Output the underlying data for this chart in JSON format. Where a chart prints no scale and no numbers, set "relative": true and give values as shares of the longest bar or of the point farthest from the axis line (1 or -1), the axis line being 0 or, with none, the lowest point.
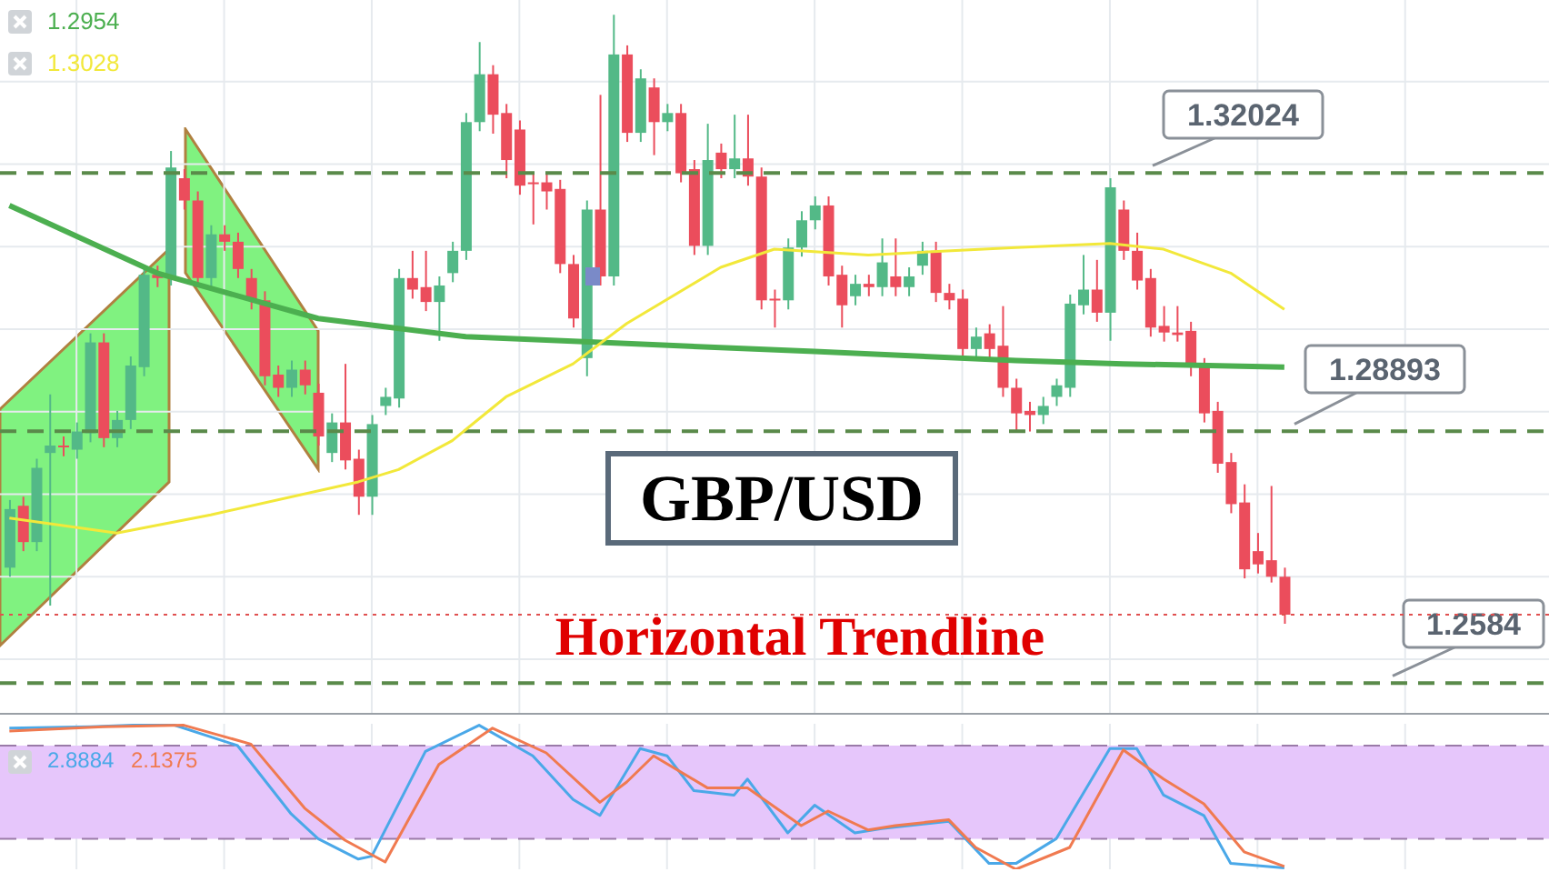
{
  "chart_data": [
    {
      "type": "candlestick",
      "title": "GBP/USD",
      "annotations": [
        "Horizontal Trendline",
        "1.2954",
        "1.3028"
      ],
      "categories": [
        null,
        null,
        null,
        null,
        null,
        null,
        null,
        null,
        null,
        null,
        null,
        null,
        null,
        null,
        null,
        null,
        null,
        null,
        null,
        null,
        null,
        null,
        null,
        null,
        null,
        null,
        null,
        null,
        null,
        null,
        null,
        null,
        null,
        null,
        null,
        null,
        null,
        null,
        null,
        null,
        null,
        null,
        null,
        null,
        null,
        null,
        null,
        null,
        null,
        null,
        null,
        null,
        null,
        null,
        null,
        null,
        null,
        null,
        null,
        null,
        null,
        null,
        null,
        null,
        null,
        null,
        null,
        null,
        null,
        null,
        null,
        null,
        null,
        null,
        null,
        null,
        null,
        null,
        null,
        null,
        null,
        null,
        null,
        null,
        null,
        null,
        null,
        null,
        null,
        null,
        null,
        null,
        null,
        null,
        null,
        null
      ],
      "ohlc": [
        [
          1.2724,
          1.2806,
          1.2713,
          1.2795
        ],
        [
          1.2799,
          1.281,
          1.2744,
          1.2755
        ],
        [
          1.2755,
          1.2856,
          1.2744,
          1.2845
        ],
        [
          1.2863,
          1.2934,
          1.2678,
          1.2872
        ],
        [
          1.2872,
          1.2883,
          1.2859,
          1.287
        ],
        [
          1.2867,
          1.29,
          1.2856,
          1.2889
        ],
        [
          1.2887,
          1.3008,
          1.2876,
          1.2997
        ],
        [
          1.2997,
          1.3008,
          1.287,
          1.2881
        ],
        [
          1.2881,
          1.2914,
          1.287,
          1.2903
        ],
        [
          1.2903,
          1.298,
          1.2892,
          1.2969
        ],
        [
          1.2967,
          1.309,
          1.2956,
          1.3079
        ],
        [
          1.3079,
          1.309,
          1.3064,
          1.3075
        ],
        [
          1.3077,
          1.3229,
          1.3066,
          1.3209
        ],
        [
          1.3196,
          1.3207,
          1.3158,
          1.3169
        ],
        [
          1.3169,
          1.318,
          1.3064,
          1.3075
        ],
        [
          1.3075,
          1.3139,
          1.3064,
          1.3128
        ],
        [
          1.3128,
          1.3139,
          1.3108,
          1.3119
        ],
        [
          1.3119,
          1.313,
          1.3075,
          1.3086
        ],
        [
          1.3075,
          1.3086,
          1.3037,
          1.3048
        ],
        [
          1.3048,
          1.3059,
          1.2945,
          1.2956
        ],
        [
          1.2958,
          1.2969,
          1.2931,
          1.2942
        ],
        [
          1.2942,
          1.2975,
          1.2931,
          1.2964
        ],
        [
          1.2964,
          1.2975,
          1.2934,
          1.2945
        ],
        [
          1.2936,
          1.2947,
          1.2872,
          1.2883
        ],
        [
          1.2863,
          1.2911,
          1.2852,
          1.29
        ],
        [
          1.29,
          1.2971,
          1.2843,
          1.2854
        ],
        [
          1.2856,
          1.2867,
          1.2788,
          1.281
        ],
        [
          1.281,
          1.2909,
          1.2788,
          1.2898
        ],
        [
          1.292,
          1.2942,
          1.2909,
          1.2931
        ],
        [
          1.2929,
          1.3086,
          1.2918,
          1.3075
        ],
        [
          1.3075,
          1.3108,
          1.305,
          1.3061
        ],
        [
          1.3064,
          1.3108,
          1.3035,
          1.3046
        ],
        [
          1.3046,
          1.3077,
          1.2999,
          1.3066
        ],
        [
          1.3081,
          1.3119,
          1.307,
          1.3108
        ],
        [
          1.3108,
          1.3275,
          1.3097,
          1.3264
        ],
        [
          1.3264,
          1.3361,
          1.3253,
          1.3322
        ],
        [
          1.3322,
          1.3333,
          1.325,
          1.3273
        ],
        [
          1.3275,
          1.3286,
          1.3196,
          1.3218
        ],
        [
          1.3255,
          1.3266,
          1.3176,
          1.3187
        ],
        [
          1.3191,
          1.3202,
          1.314,
          1.3189
        ],
        [
          1.3191,
          1.3202,
          1.3158,
          1.318
        ],
        [
          1.3183,
          1.3194,
          1.3081,
          1.3092
        ],
        [
          1.3092,
          1.3103,
          1.3015,
          1.3026
        ],
        [
          1.2978,
          1.3169,
          1.2956,
          1.3158
        ],
        [
          1.3158,
          1.3297,
          1.3066,
          1.3077
        ],
        [
          1.3077,
          1.3394,
          1.3066,
          1.3346
        ],
        [
          1.3346,
          1.3357,
          1.324,
          1.3251
        ],
        [
          1.3251,
          1.3328,
          1.324,
          1.3317
        ],
        [
          1.3306,
          1.3317,
          1.3224,
          1.3264
        ],
        [
          1.3264,
          1.3286,
          1.3253,
          1.3275
        ],
        [
          1.3275,
          1.3286,
          1.3191,
          1.3202
        ],
        [
          1.3207,
          1.3218,
          1.3103,
          1.3114
        ],
        [
          1.3114,
          1.3262,
          1.3103,
          1.3218
        ],
        [
          1.3227,
          1.3238,
          1.3196,
          1.3207
        ],
        [
          1.3207,
          1.3273,
          1.3196,
          1.322
        ],
        [
          1.322,
          1.3273,
          1.3187,
          1.3198
        ],
        [
          1.3198,
          1.3209,
          1.3037,
          1.3048
        ],
        [
          1.305,
          1.3061,
          1.3015,
          1.3048
        ],
        [
          1.3048,
          1.3123,
          1.3037,
          1.3112
        ],
        [
          1.3112,
          1.3156,
          1.3101,
          1.3145
        ],
        [
          1.3145,
          1.3174,
          1.3134,
          1.3163
        ],
        [
          1.3163,
          1.3174,
          1.3066,
          1.3077
        ],
        [
          1.3079,
          1.309,
          1.3015,
          1.3042
        ],
        [
          1.3053,
          1.3079,
          1.3042,
          1.3068
        ],
        [
          1.3068,
          1.3079,
          1.3053,
          1.3064
        ],
        [
          1.3064,
          1.3123,
          1.3053,
          1.3094
        ],
        [
          1.3077,
          1.3123,
          1.3053,
          1.3064
        ],
        [
          1.3064,
          1.3088,
          1.3053,
          1.3077
        ],
        [
          1.309,
          1.3119,
          1.3079,
          1.3108
        ],
        [
          1.3108,
          1.3119,
          1.3046,
          1.3057
        ],
        [
          1.3057,
          1.3068,
          1.3037,
          1.3048
        ],
        [
          1.305,
          1.3061,
          1.2978,
          1.2989
        ],
        [
          1.2989,
          1.3015,
          1.2978,
          1.3004
        ],
        [
          1.3008,
          1.3019,
          1.2978,
          1.2989
        ],
        [
          1.2993,
          1.3041,
          1.2931,
          1.2942
        ],
        [
          1.2942,
          1.2953,
          1.2889,
          1.2911
        ],
        [
          1.2914,
          1.2925,
          1.2889,
          1.2909
        ],
        [
          1.2909,
          1.2931,
          1.2898,
          1.292
        ],
        [
          1.2931,
          1.2953,
          1.292,
          1.2945
        ],
        [
          1.2942,
          1.3055,
          1.2931,
          1.3044
        ],
        [
          1.3042,
          1.3103,
          1.3031,
          1.3061
        ],
        [
          1.3061,
          1.3097,
          1.3022,
          1.3033
        ],
        [
          1.3033,
          1.3196,
          1.2999,
          1.3185
        ],
        [
          1.3158,
          1.3169,
          1.3097,
          1.3108
        ],
        [
          1.3108,
          1.313,
          1.3061,
          1.3072
        ],
        [
          1.3075,
          1.3086,
          1.3004,
          1.3015
        ],
        [
          1.3017,
          1.3041,
          1.2998,
          1.3009
        ],
        [
          1.3009,
          1.3041,
          1.2998,
          1.3006
        ],
        [
          1.3011,
          1.3022,
          1.2956,
          1.2967
        ],
        [
          1.2967,
          1.2978,
          1.29,
          1.2911
        ],
        [
          1.2914,
          1.2925,
          1.2839,
          1.285
        ],
        [
          1.2852,
          1.2863,
          1.279,
          1.2801
        ],
        [
          1.2803,
          1.2825,
          1.2711,
          1.2722
        ],
        [
          1.2744,
          1.2766,
          1.2717,
          1.2728
        ],
        [
          1.2733,
          1.2823,
          1.2706,
          1.2713
        ],
        [
          1.2713,
          1.2724,
          1.2656,
          1.2667
        ]
      ],
      "colors": [
        "#53b987",
        "#eb4d5c",
        "#53b987",
        "#53b987",
        "#eb4d5c",
        "#53b987",
        "#53b987",
        "#eb4d5c",
        "#53b987",
        "#53b987",
        "#53b987",
        "#eb4d5c",
        "#53b987",
        "#eb4d5c",
        "#eb4d5c",
        "#53b987",
        "#eb4d5c",
        "#eb4d5c",
        "#eb4d5c",
        "#eb4d5c",
        "#eb4d5c",
        "#53b987",
        "#eb4d5c",
        "#eb4d5c",
        "#53b987",
        "#eb4d5c",
        "#eb4d5c",
        "#53b987",
        "#53b987",
        "#53b987",
        "#eb4d5c",
        "#eb4d5c",
        "#53b987",
        "#53b987",
        "#53b987",
        "#53b987",
        "#eb4d5c",
        "#eb4d5c",
        "#eb4d5c",
        "#eb4d5c",
        "#eb4d5c",
        "#eb4d5c",
        "#eb4d5c",
        "#53b987",
        "#eb4d5c",
        "#53b987",
        "#eb4d5c",
        "#53b987",
        "#eb4d5c",
        "#53b987",
        "#eb4d5c",
        "#eb4d5c",
        "#53b987",
        "#eb4d5c",
        "#53b987",
        "#eb4d5c",
        "#eb4d5c",
        "#eb4d5c",
        "#53b987",
        "#53b987",
        "#53b987",
        "#eb4d5c",
        "#eb4d5c",
        "#53b987",
        "#eb4d5c",
        "#53b987",
        "#eb4d5c",
        "#53b987",
        "#53b987",
        "#eb4d5c",
        "#eb4d5c",
        "#eb4d5c",
        "#53b987",
        "#eb4d5c",
        "#eb4d5c",
        "#eb4d5c",
        "#eb4d5c",
        "#53b987",
        "#53b987",
        "#53b987",
        "#53b987",
        "#eb4d5c",
        "#53b987",
        "#eb4d5c",
        "#eb4d5c",
        "#eb4d5c",
        "#eb4d5c",
        "#eb4d5c",
        "#eb4d5c",
        "#eb4d5c",
        "#eb4d5c",
        "#eb4d5c",
        "#eb4d5c",
        "#eb4d5c",
        "#eb4d5c",
        "#eb4d5c"
      ],
      "series": [
        {
          "type": "line",
          "color": "#4caf50",
          "values": [
            1.3163,
            null,
            null,
            null,
            null,
            null,
            null,
            null,
            null,
            null,
            null,
            1.3081,
            null,
            null,
            null,
            null,
            null,
            null,
            null,
            null,
            null,
            null,
            null,
            1.3026,
            null,
            null,
            null,
            null,
            null,
            null,
            null,
            null,
            null,
            null,
            1.3004,
            null,
            null,
            null,
            null,
            null,
            null,
            null,
            null,
            null,
            1.2997,
            null,
            null,
            null,
            null,
            null,
            null,
            null,
            null,
            null,
            null,
            null,
            null,
            null,
            null,
            null,
            1.2986,
            null,
            null,
            null,
            null,
            null,
            null,
            null,
            null,
            null,
            null,
            null,
            null,
            null,
            null,
            1.2975,
            null,
            null,
            null,
            null,
            null,
            null,
            null,
            1.2971,
            null,
            null,
            null,
            null,
            null,
            null,
            null,
            null,
            null,
            null,
            null,
            1.2967
          ]
        },
        {
          "type": "line",
          "color": "#f2e83a",
          "values": [
            1.2784,
            null,
            null,
            null,
            null,
            null,
            null,
            null,
            1.2766,
            null,
            null,
            null,
            null,
            null,
            null,
            1.2788,
            null,
            null,
            null,
            null,
            null,
            null,
            null,
            null,
            null,
            null,
            1.2828,
            null,
            null,
            1.2843,
            null,
            null,
            null,
            1.2878,
            null,
            null,
            null,
            1.2931,
            null,
            null,
            null,
            null,
            1.2971,
            null,
            null,
            null,
            1.302,
            null,
            null,
            null,
            null,
            null,
            null,
            1.3088,
            null,
            null,
            null,
            1.311,
            null,
            null,
            null,
            null,
            null,
            null,
            1.3103,
            null,
            null,
            null,
            null,
            null,
            null,
            null,
            null,
            null,
            null,
            1.3112,
            null,
            null,
            null,
            null,
            null,
            null,
            1.3117,
            null,
            null,
            null,
            1.311,
            null,
            null,
            null,
            null,
            1.3081,
            null,
            null,
            null,
            1.3037
          ]
        }
      ],
      "ylim": [
        1.2548,
        1.3412
      ],
      "yticks": [
        {
          "value": 1.2613,
          "label": null
        },
        {
          "value": 1.2713,
          "label": null
        },
        {
          "value": 1.2813,
          "label": null
        },
        {
          "value": 1.2913,
          "label": null
        },
        {
          "value": 1.3013,
          "label": null
        },
        {
          "value": 1.3113,
          "label": null
        },
        {
          "value": 1.3213,
          "label": null
        },
        {
          "value": 1.3313,
          "label": null
        }
      ],
      "ref_lines": [
        {
          "axis": "y",
          "value": 1.32024,
          "label": "1.32024",
          "color": "#5a8a4a",
          "line_style": "dashed"
        },
        {
          "axis": "y",
          "value": 1.28893,
          "label": "1.28893",
          "color": "#5a8a4a",
          "line_style": "dashed"
        },
        {
          "axis": "y",
          "value": 1.2584,
          "label": "1.2584",
          "color": "#5a8a4a",
          "line_style": "dashed"
        },
        {
          "axis": "y",
          "value": 1.2667,
          "label": null,
          "color": "#e05050",
          "line_style": "dotted"
        }
      ],
      "grid": true,
      "legend": false,
      "tick_labels": false,
      "marker": "none",
      "line_style": "solid"
    },
    {
      "type": "line",
      "relative": true,
      "annotations": [
        "2.8884",
        "2.1375"
      ],
      "categories": [
        null,
        null,
        null,
        null,
        null,
        null,
        null,
        null,
        null,
        null,
        null,
        null,
        null,
        null,
        null,
        null,
        null,
        null,
        null,
        null,
        null,
        null,
        null,
        null,
        null,
        null,
        null,
        null,
        null,
        null,
        null,
        null,
        null,
        null,
        null,
        null,
        null,
        null,
        null,
        null,
        null,
        null,
        null,
        null,
        null,
        null,
        null,
        null,
        null,
        null,
        null,
        null,
        null,
        null,
        null,
        null,
        null,
        null,
        null,
        null,
        null,
        null,
        null,
        null,
        null,
        null,
        null,
        null,
        null,
        null,
        null,
        null,
        null,
        null,
        null,
        null,
        null,
        null,
        null,
        null,
        null,
        null,
        null,
        null,
        null,
        null,
        null,
        null,
        null,
        null,
        null,
        null,
        null,
        null,
        null,
        null
      ],
      "series": [
        {
          "color": "#4aa8e8",
          "values": [
            0.97,
            null,
            null,
            null,
            null,
            null,
            0.98,
            null,
            null,
            null,
            null,
            null,
            1,
            null,
            null,
            null,
            null,
            0.85,
            null,
            null,
            null,
            0.38,
            null,
            0.21,
            null,
            null,
            0.07,
            0.09,
            null,
            null,
            null,
            0.81,
            null,
            null,
            null,
            0.99,
            null,
            null,
            null,
            0.78,
            null,
            null,
            0.48,
            null,
            0.37,
            null,
            null,
            0.83,
            null,
            0.78,
            null,
            0.54,
            null,
            null,
            0.51,
            0.62,
            null,
            null,
            0.25,
            null,
            0.44,
            null,
            null,
            0.25,
            null,
            0.28,
            null,
            null,
            null,
            null,
            0.33,
            null,
            null,
            0.04,
            null,
            0.04,
            null,
            null,
            0.21,
            null,
            null,
            null,
            0.83,
            null,
            0.83,
            null,
            0.51,
            null,
            null,
            0.37,
            null,
            0.04,
            null,
            null,
            null,
            0.01
          ]
        },
        {
          "color": "#f07a50",
          "values": [
            0.95,
            null,
            null,
            null,
            null,
            null,
            null,
            0.98,
            null,
            null,
            null,
            null,
            null,
            0.99,
            null,
            null,
            null,
            null,
            0.86,
            null,
            null,
            null,
            0.42,
            null,
            null,
            0.2,
            null,
            null,
            0.05,
            null,
            null,
            null,
            0.72,
            null,
            null,
            null,
            0.97,
            null,
            null,
            null,
            0.8,
            null,
            null,
            null,
            0.46,
            null,
            0.6,
            null,
            0.78,
            null,
            null,
            null,
            0.56,
            null,
            null,
            0.56,
            null,
            null,
            null,
            0.3,
            null,
            0.4,
            null,
            null,
            0.27,
            null,
            0.3,
            null,
            null,
            null,
            0.34,
            null,
            0.15,
            null,
            null,
            0,
            null,
            null,
            null,
            0.15,
            null,
            null,
            null,
            0.82,
            null,
            null,
            0.62,
            null,
            null,
            0.45,
            null,
            null,
            0.12,
            null,
            null,
            0.02
          ]
        }
      ],
      "bands": [
        {
          "axis": "y",
          "from": 0.21,
          "to": 0.85,
          "color": "#e6c6fb"
        }
      ],
      "ref_lines": [
        {
          "axis": "y",
          "value": 0.21,
          "label": null,
          "color": "#9a7aa8",
          "line_style": "dashed"
        },
        {
          "axis": "y",
          "value": 0.85,
          "label": null,
          "color": "#9a7aa8",
          "line_style": "dashed"
        }
      ],
      "grid": "x",
      "legend": false,
      "tick_labels": false,
      "marker": "none",
      "line_style": "solid"
    }
  ]
}
